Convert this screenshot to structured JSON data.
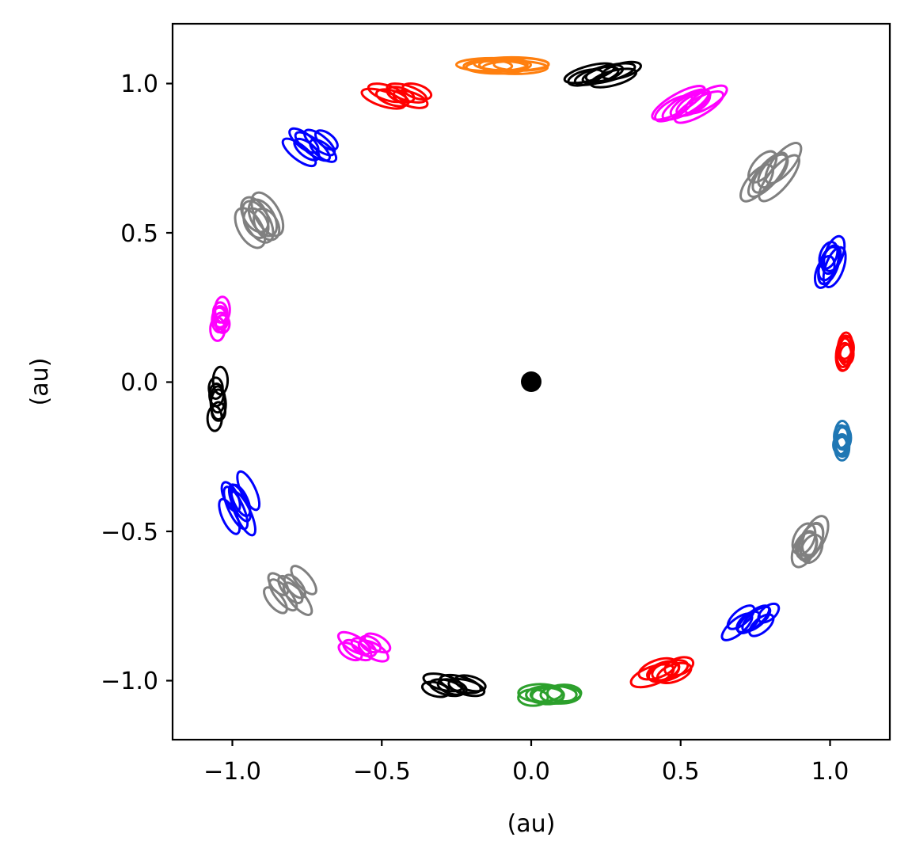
{
  "chart_data": {
    "type": "scatter",
    "title": "",
    "xlabel": "(au)",
    "ylabel": "(au)",
    "xlim": [
      -1.2,
      1.2
    ],
    "ylim": [
      -1.2,
      1.2
    ],
    "grid": false,
    "legend": "none",
    "xticks": [
      {
        "value": -1.0,
        "label": "−1.0"
      },
      {
        "value": -0.5,
        "label": "−0.5"
      },
      {
        "value": 0.0,
        "label": "0.0"
      },
      {
        "value": 0.5,
        "label": "0.5"
      },
      {
        "value": 1.0,
        "label": "1.0"
      }
    ],
    "yticks": [
      {
        "value": -1.0,
        "label": "−1.0"
      },
      {
        "value": -0.5,
        "label": "−0.5"
      },
      {
        "value": 0.0,
        "label": "0.0"
      },
      {
        "value": 0.5,
        "label": "0.5"
      },
      {
        "value": 1.0,
        "label": "1.0"
      }
    ],
    "central_body": {
      "x": 0.0,
      "y": 0.0,
      "color": "#000000"
    },
    "orbit_groups": [
      {
        "color": "#ff7f0e",
        "cx": -0.09,
        "cy": 1.06,
        "rx": 0.26,
        "ry": 0.045,
        "angle": 0,
        "x_spread": 0.12,
        "y_spread": 0.02
      },
      {
        "color": "#000000",
        "cx": 0.24,
        "cy": 1.03,
        "rx": 0.18,
        "ry": 0.05,
        "angle": -15,
        "x_spread": 0.12,
        "y_spread": 0.04
      },
      {
        "color": "#ff00ff",
        "cx": 0.53,
        "cy": 0.93,
        "rx": 0.2,
        "ry": 0.06,
        "angle": -30,
        "x_spread": 0.1,
        "y_spread": 0.04
      },
      {
        "color": "#808080",
        "cx": 0.8,
        "cy": 0.7,
        "rx": 0.2,
        "ry": 0.07,
        "angle": -50,
        "x_spread": 0.08,
        "y_spread": 0.1
      },
      {
        "color": "#0000ff",
        "cx": 1.0,
        "cy": 0.4,
        "rx": 0.14,
        "ry": 0.06,
        "angle": -70,
        "x_spread": 0.03,
        "y_spread": 0.1
      },
      {
        "color": "#ff0000",
        "cx": 1.05,
        "cy": 0.1,
        "rx": 0.11,
        "ry": 0.05,
        "angle": -85,
        "x_spread": 0.01,
        "y_spread": 0.06
      },
      {
        "color": "#1f77b4",
        "cx": 1.04,
        "cy": -0.2,
        "rx": 0.1,
        "ry": 0.05,
        "angle": -90,
        "x_spread": 0.01,
        "y_spread": 0.08
      },
      {
        "color": "#808080",
        "cx": 0.93,
        "cy": -0.54,
        "rx": 0.14,
        "ry": 0.07,
        "angle": -65,
        "x_spread": 0.04,
        "y_spread": 0.08
      },
      {
        "color": "#0000ff",
        "cx": 0.74,
        "cy": -0.8,
        "rx": 0.13,
        "ry": 0.05,
        "angle": -40,
        "x_spread": 0.1,
        "y_spread": 0.07
      },
      {
        "color": "#ff0000",
        "cx": 0.45,
        "cy": -0.97,
        "rx": 0.15,
        "ry": 0.06,
        "angle": -20,
        "x_spread": 0.08,
        "y_spread": 0.04
      },
      {
        "color": "#2ca02c",
        "cx": 0.06,
        "cy": -1.05,
        "rx": 0.16,
        "ry": 0.06,
        "angle": 0,
        "x_spread": 0.1,
        "y_spread": 0.02
      },
      {
        "color": "#000000",
        "cx": -0.26,
        "cy": -1.02,
        "rx": 0.14,
        "ry": 0.05,
        "angle": 15,
        "x_spread": 0.12,
        "y_spread": 0.04
      },
      {
        "color": "#ff00ff",
        "cx": -0.56,
        "cy": -0.89,
        "rx": 0.12,
        "ry": 0.05,
        "angle": 30,
        "x_spread": 0.1,
        "y_spread": 0.06
      },
      {
        "color": "#808080",
        "cx": -0.81,
        "cy": -0.7,
        "rx": 0.14,
        "ry": 0.05,
        "angle": 50,
        "x_spread": 0.1,
        "y_spread": 0.12
      },
      {
        "color": "#0000ff",
        "cx": -0.98,
        "cy": -0.41,
        "rx": 0.16,
        "ry": 0.05,
        "angle": 65,
        "x_spread": 0.06,
        "y_spread": 0.14
      },
      {
        "color": "#000000",
        "cx": -1.05,
        "cy": -0.06,
        "rx": 0.1,
        "ry": 0.05,
        "angle": 90,
        "x_spread": 0.01,
        "y_spread": 0.2
      },
      {
        "color": "#ff00ff",
        "cx": -1.04,
        "cy": 0.21,
        "rx": 0.09,
        "ry": 0.05,
        "angle": 90,
        "x_spread": 0.01,
        "y_spread": 0.1
      },
      {
        "color": "#808080",
        "cx": -0.91,
        "cy": 0.54,
        "rx": 0.16,
        "ry": 0.08,
        "angle": 60,
        "x_spread": 0.06,
        "y_spread": 0.08
      },
      {
        "color": "#0000ff",
        "cx": -0.73,
        "cy": 0.79,
        "rx": 0.14,
        "ry": 0.05,
        "angle": 38,
        "x_spread": 0.1,
        "y_spread": 0.08
      },
      {
        "color": "#ff0000",
        "cx": -0.44,
        "cy": 0.96,
        "rx": 0.15,
        "ry": 0.05,
        "angle": 18,
        "x_spread": 0.12,
        "y_spread": 0.05
      }
    ]
  }
}
